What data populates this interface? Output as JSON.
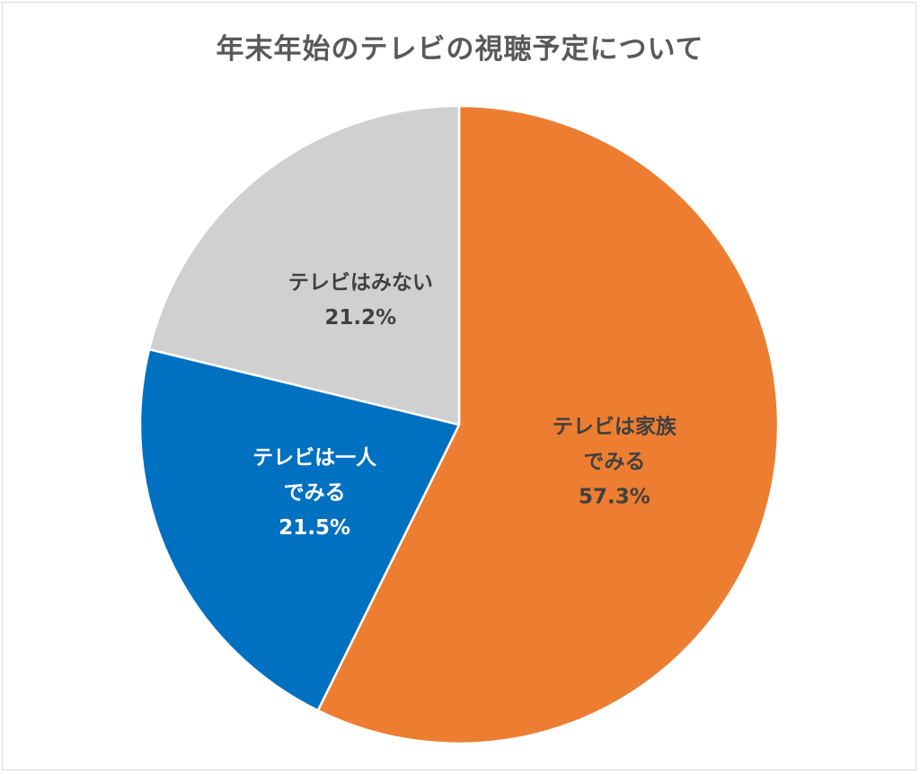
{
  "chart_data": {
    "type": "pie",
    "title": "年末年始のテレビの視聴予定について",
    "slices": [
      {
        "label_lines": [
          "テレビは家族",
          "でみる"
        ],
        "value": 57.3,
        "value_label": "57.3%",
        "color": "#ED7D31",
        "text_color": "#404040"
      },
      {
        "label_lines": [
          "テレビは一人",
          "でみる"
        ],
        "value": 21.5,
        "value_label": "21.5%",
        "color": "#0070C0",
        "text_color": "#ffffff"
      },
      {
        "label_lines": [
          "テレビはみない"
        ],
        "value": 21.2,
        "value_label": "21.2%",
        "color": "#D0D0D0",
        "text_color": "#404040"
      }
    ],
    "legend": "none",
    "start_angle": "12 o'clock",
    "direction": "clockwise"
  }
}
